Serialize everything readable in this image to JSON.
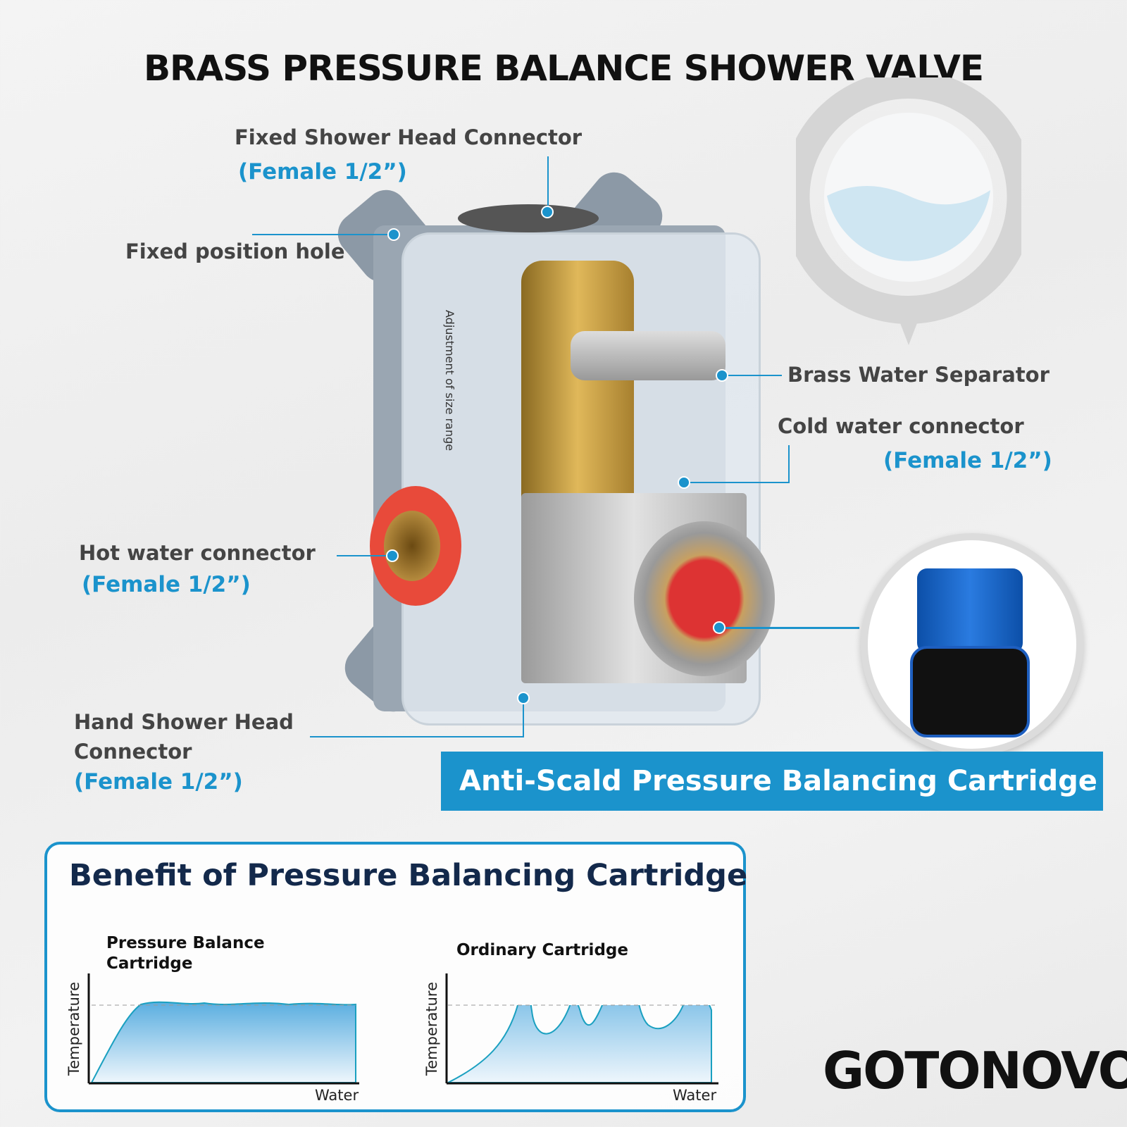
{
  "title": "BRASS PRESSURE BALANCE SHOWER VALVE",
  "callouts": {
    "fixed_head": {
      "label": "Fixed Shower Head Connector",
      "spec": "(Female 1/2”)"
    },
    "fixed_hole": {
      "label": "Fixed position hole"
    },
    "separator": {
      "label": "Brass Water Separator"
    },
    "cold": {
      "label": "Cold water connector",
      "spec": "(Female 1/2”)"
    },
    "hot": {
      "label": "Hot water connector",
      "spec": "(Female 1/2”)"
    },
    "hand": {
      "label1": "Hand Shower Head",
      "label2": "Connector",
      "spec": "(Female 1/2”)"
    }
  },
  "product_label": "Adjustment of size range",
  "banner": "Anti-Scald Pressure Balancing Cartridge",
  "benefit": {
    "title": "Benefit of Pressure Balancing Cartridge",
    "left": {
      "title1": "Pressure Balance",
      "title2": "Cartridge",
      "ylabel": "Temperature",
      "xlabel": "Water"
    },
    "right": {
      "title": "Ordinary Cartridge",
      "ylabel": "Temperature",
      "xlabel": "Water"
    }
  },
  "logo": "GOTONOVO",
  "colors": {
    "accent": "#1b93cc",
    "hot": "#e05a5a",
    "navy": "#13294b"
  }
}
